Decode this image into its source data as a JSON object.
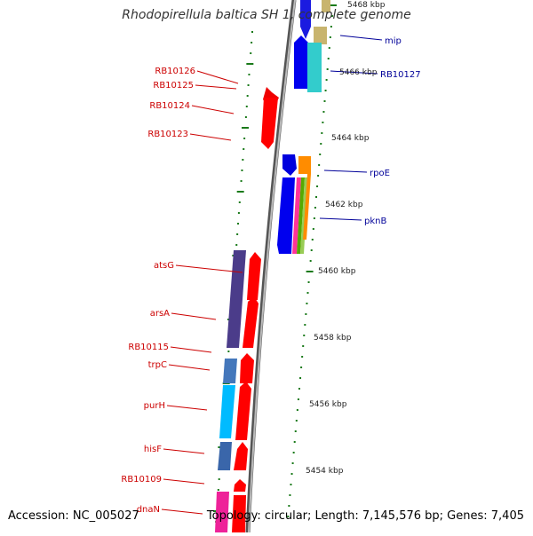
{
  "title": "Rhodopirellula baltica SH 1, complete genome",
  "footer": {
    "accession": "Accession: NC_005027",
    "topology": "Topology: circular; Length: 7,145,576 bp; Genes: 7,405"
  },
  "colors": {
    "backbone": "#999999",
    "backbone_dark": "#555555",
    "tick": "#1a7a1a",
    "left_label": "#cc0000",
    "right_label": "#000099",
    "forward_gene": "#ff0000",
    "reverse_gene": "#0000ff"
  },
  "scale_labels": [
    "5468 kbp",
    "5466 kbp",
    "5464 kbp",
    "5462 kbp",
    "5460 kbp",
    "5458 kbp",
    "5456 kbp",
    "5454 kbp"
  ],
  "left_labels": [
    "RB10126",
    "RB10125",
    "RB10124",
    "RB10123",
    "atsG",
    "arsA",
    "RB10115",
    "trpC",
    "purH",
    "hisF",
    "RB10109",
    "dnaN"
  ],
  "right_labels": [
    "mip",
    "RB10127",
    "rpoE",
    "pknB"
  ]
}
